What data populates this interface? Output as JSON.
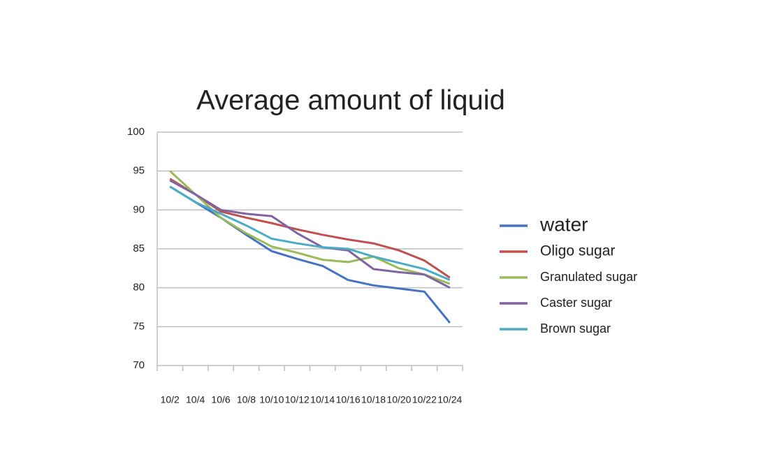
{
  "chart_data": {
    "type": "line",
    "title": "Average amount of liquid",
    "categories": [
      "10/2",
      "10/4",
      "10/6",
      "10/8",
      "10/10",
      "10/12",
      "10/14",
      "10/16",
      "10/18",
      "10/20",
      "10/22",
      "10/24"
    ],
    "series": [
      {
        "name": "water",
        "color": "#4472c4",
        "values": [
          93,
          91,
          89,
          86.8,
          84.7,
          83.7,
          82.8,
          81,
          80.3,
          79.9,
          79.5,
          75.5
        ]
      },
      {
        "name": "Oligo sugar",
        "color": "#c0504d",
        "values": [
          94,
          92,
          89.8,
          89,
          88.3,
          87.5,
          86.8,
          86.2,
          85.7,
          84.8,
          83.5,
          81.3
        ]
      },
      {
        "name": "Granulated sugar",
        "color": "#9bbb59",
        "values": [
          95,
          92,
          89,
          87,
          85.3,
          84.5,
          83.6,
          83.3,
          84,
          82.5,
          81.7,
          80.5
        ]
      },
      {
        "name": "Caster sugar",
        "color": "#8064a2",
        "values": [
          93.8,
          92,
          90,
          89.5,
          89.2,
          87,
          85.2,
          84.8,
          82.4,
          82,
          81.7,
          80
        ]
      },
      {
        "name": "Brown sugar",
        "color": "#4bacc6",
        "values": [
          93,
          91,
          89.5,
          88,
          86.3,
          85.7,
          85.2,
          85,
          84,
          83.2,
          82.4,
          81
        ]
      }
    ],
    "ylim": [
      70,
      100
    ],
    "yticks": [
      70,
      75,
      80,
      85,
      90,
      95,
      100
    ],
    "grid": true,
    "legend": "right"
  }
}
